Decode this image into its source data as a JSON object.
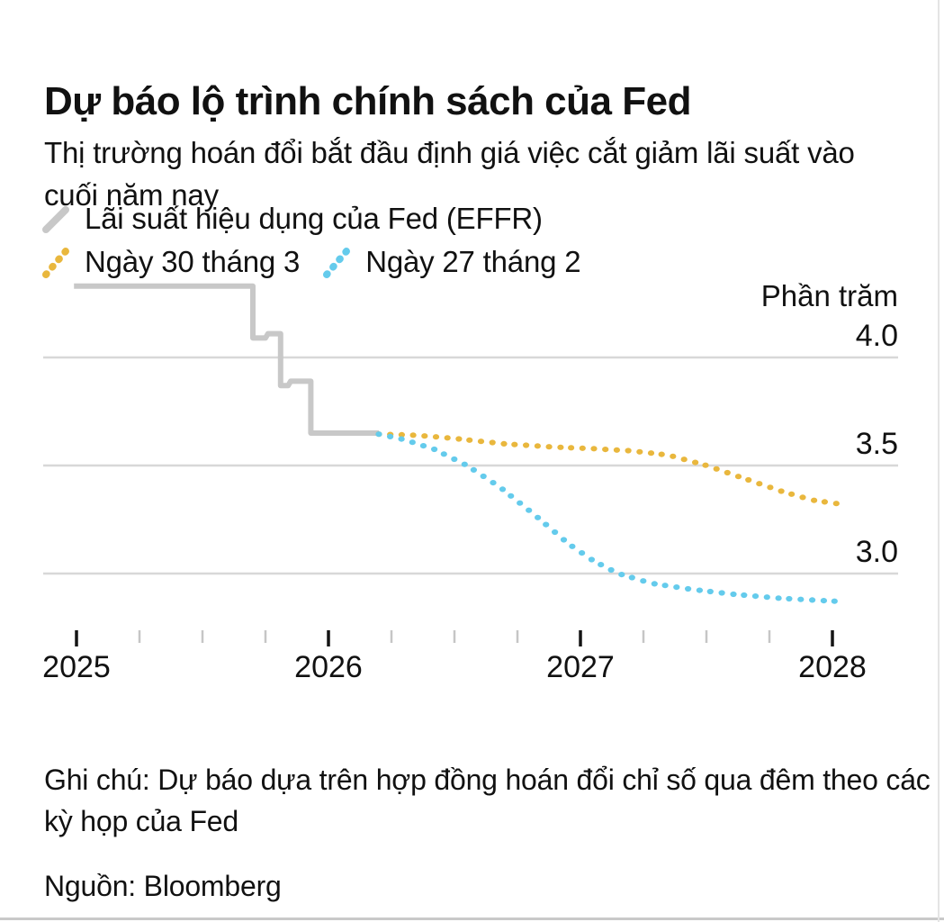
{
  "header": {
    "title": "Dự báo lộ trình chính sách của Fed",
    "subtitle": "Thị trường hoán đổi bắt đầu định giá việc cắt giảm lãi suất vào cuối năm nay"
  },
  "legend": {
    "effr": {
      "label": "Lãi suất hiệu dụng của Fed (EFFR)",
      "color": "#c8c8c8",
      "style": "solid"
    },
    "mar30": {
      "label": "Ngày 30 tháng 3",
      "color": "#e9b73d",
      "style": "dotted"
    },
    "feb27": {
      "label": "Ngày 27 tháng 2",
      "color": "#64cbec",
      "style": "dotted"
    }
  },
  "chart_data": {
    "type": "line",
    "unit_label": "Phần trăm",
    "grid": "horizontal-only",
    "legend_position": "top-left",
    "x_axis": {
      "ticks": [
        2025,
        2026,
        2027,
        2028
      ],
      "labels": [
        "2025",
        "2026",
        "2027",
        "2028"
      ],
      "minor_tick_interval_years": 0.25,
      "range": [
        2024.99,
        2028.3
      ]
    },
    "y_axis": {
      "ticks": [
        4.0,
        3.5,
        3.0
      ],
      "labels": [
        "4.0",
        "3.5",
        "3.0"
      ],
      "range": [
        2.72,
        4.42
      ]
    },
    "series": [
      {
        "name": "Lãi suất hiệu dụng của Fed (EFFR)",
        "color": "#c8c8c8",
        "line_style": "solid",
        "points": [
          [
            2024.99,
            4.33
          ],
          [
            2025.7,
            4.33
          ],
          [
            2025.7,
            4.09
          ],
          [
            2025.75,
            4.09
          ],
          [
            2025.76,
            4.11
          ],
          [
            2025.81,
            4.11
          ],
          [
            2025.81,
            3.87
          ],
          [
            2025.84,
            3.87
          ],
          [
            2025.85,
            3.89
          ],
          [
            2025.93,
            3.89
          ],
          [
            2025.93,
            3.65
          ],
          [
            2026.2,
            3.65
          ]
        ]
      },
      {
        "name": "Ngày 30 tháng 3",
        "color": "#e9b73d",
        "line_style": "dotted",
        "points": [
          [
            2026.2,
            3.645
          ],
          [
            2026.35,
            3.64
          ],
          [
            2026.5,
            3.625
          ],
          [
            2026.7,
            3.6
          ],
          [
            2026.9,
            3.585
          ],
          [
            2027.05,
            3.578
          ],
          [
            2027.2,
            3.568
          ],
          [
            2027.35,
            3.548
          ],
          [
            2027.5,
            3.5
          ],
          [
            2027.65,
            3.44
          ],
          [
            2027.8,
            3.38
          ],
          [
            2027.92,
            3.34
          ],
          [
            2028.04,
            3.32
          ]
        ]
      },
      {
        "name": "Ngày 27 tháng 2",
        "color": "#64cbec",
        "line_style": "dotted",
        "points": [
          [
            2026.2,
            3.645
          ],
          [
            2026.3,
            3.62
          ],
          [
            2026.42,
            3.575
          ],
          [
            2026.55,
            3.5
          ],
          [
            2026.68,
            3.4
          ],
          [
            2026.82,
            3.27
          ],
          [
            2026.95,
            3.14
          ],
          [
            2027.05,
            3.06
          ],
          [
            2027.15,
            3.0
          ],
          [
            2027.28,
            2.955
          ],
          [
            2027.42,
            2.93
          ],
          [
            2027.6,
            2.905
          ],
          [
            2027.8,
            2.885
          ],
          [
            2028.04,
            2.87
          ]
        ]
      }
    ]
  },
  "footer": {
    "note": "Ghi chú: Dự báo dựa trên hợp đồng hoán đổi chỉ số qua đêm theo các kỳ họp của Fed",
    "source": "Nguồn: Bloomberg"
  }
}
